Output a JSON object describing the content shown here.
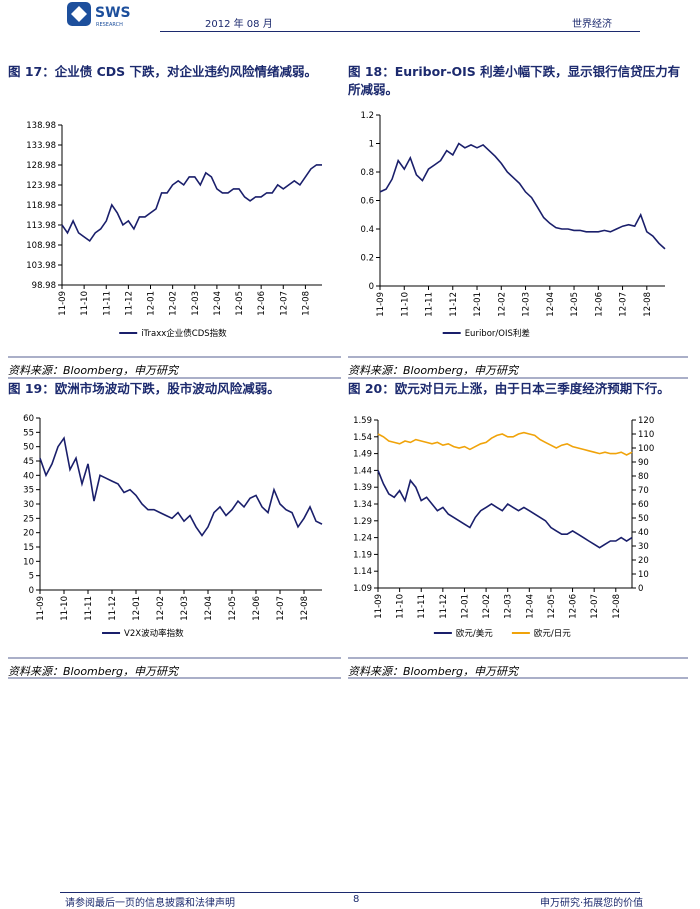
{
  "header": {
    "logo": "SWS",
    "logo_sub": "RESEARCH",
    "date": "2012 年 08 月",
    "section": "世界经济"
  },
  "chart_data": [
    {
      "type": "line",
      "title": "图 17：企业债 CDS 下跌，对企业违约风险情绪减弱。",
      "source": "资料来源：Bloomberg，申万研究",
      "categories": [
        "11-09",
        null,
        null,
        null,
        "11-10",
        null,
        null,
        null,
        "11-11",
        null,
        null,
        null,
        "11-12",
        null,
        null,
        null,
        "12-01",
        null,
        null,
        null,
        "12-02",
        null,
        null,
        null,
        "12-03",
        null,
        null,
        null,
        "12-04",
        null,
        null,
        null,
        "12-05",
        null,
        null,
        null,
        "12-06",
        null,
        null,
        null,
        "12-07",
        null,
        null,
        null,
        "12-08",
        null,
        null,
        null
      ],
      "series": [
        {
          "name": "iTraxx企业债CDS指数",
          "color": "#1a1f6b",
          "values": [
            114,
            112,
            115,
            112,
            111,
            110,
            112,
            113,
            115,
            119,
            117,
            114,
            115,
            113,
            116,
            116,
            117,
            118,
            122,
            122,
            124,
            125,
            124,
            126,
            126,
            124,
            127,
            126,
            123,
            122,
            122,
            123,
            123,
            121,
            120,
            121,
            121,
            122,
            122,
            124,
            123,
            124,
            125,
            124,
            126,
            128,
            129,
            129
          ]
        }
      ],
      "ylim": [
        98.98,
        138.98
      ],
      "yticks": [
        98.98,
        103.98,
        108.98,
        113.98,
        118.98,
        123.98,
        128.98,
        133.98,
        138.98
      ],
      "legend": "bottom"
    },
    {
      "type": "line",
      "title": "图 18：Euribor-OIS 利差小幅下跌，显示银行信贷压力有所减弱。",
      "source": "资料来源：Bloomberg，申万研究",
      "categories": [
        "11-09",
        null,
        null,
        null,
        "11-10",
        null,
        null,
        null,
        "11-11",
        null,
        null,
        null,
        "11-12",
        null,
        null,
        null,
        "12-01",
        null,
        null,
        null,
        "12-02",
        null,
        null,
        null,
        "12-03",
        null,
        null,
        null,
        "12-04",
        null,
        null,
        null,
        "12-05",
        null,
        null,
        null,
        "12-06",
        null,
        null,
        null,
        "12-07",
        null,
        null,
        null,
        "12-08",
        null,
        null,
        null
      ],
      "series": [
        {
          "name": "Euribor/OIS利差",
          "color": "#1a1f6b",
          "values": [
            0.66,
            0.68,
            0.75,
            0.88,
            0.82,
            0.9,
            0.78,
            0.74,
            0.82,
            0.85,
            0.88,
            0.95,
            0.92,
            1.0,
            0.97,
            0.99,
            0.97,
            0.99,
            0.95,
            0.91,
            0.86,
            0.8,
            0.76,
            0.72,
            0.66,
            0.62,
            0.55,
            0.48,
            0.44,
            0.41,
            0.4,
            0.4,
            0.39,
            0.39,
            0.38,
            0.38,
            0.38,
            0.39,
            0.38,
            0.4,
            0.42,
            0.43,
            0.42,
            0.5,
            0.38,
            0.35,
            0.3,
            0.26
          ]
        }
      ],
      "ylim": [
        0,
        1.2
      ],
      "yticks": [
        0,
        0.2,
        0.4,
        0.6,
        0.8,
        1,
        1.2
      ],
      "legend": "bottom"
    },
    {
      "type": "line",
      "title": "图 19：欧洲市场波动下跌，股市波动风险减弱。",
      "source": "资料来源：Bloomberg，申万研究",
      "categories": [
        "11-09",
        null,
        null,
        null,
        "11-10",
        null,
        null,
        null,
        "11-11",
        null,
        null,
        null,
        "11-12",
        null,
        null,
        null,
        "12-01",
        null,
        null,
        null,
        "12-02",
        null,
        null,
        null,
        "12-03",
        null,
        null,
        null,
        "12-04",
        null,
        null,
        null,
        "12-05",
        null,
        null,
        null,
        "12-06",
        null,
        null,
        null,
        "12-07",
        null,
        null,
        null,
        "12-08",
        null,
        null,
        null
      ],
      "series": [
        {
          "name": "V2X波动率指数",
          "color": "#1a1f6b",
          "values": [
            46,
            40,
            44,
            50,
            53,
            42,
            46,
            37,
            44,
            31,
            40,
            39,
            38,
            37,
            34,
            35,
            33,
            30,
            28,
            28,
            27,
            26,
            25,
            27,
            24,
            26,
            22,
            19,
            22,
            27,
            29,
            26,
            28,
            31,
            29,
            32,
            33,
            29,
            27,
            35,
            30,
            28,
            27,
            22,
            25,
            29,
            24,
            23
          ]
        }
      ],
      "ylim": [
        0,
        60
      ],
      "yticks": [
        0,
        5,
        10,
        15,
        20,
        25,
        30,
        35,
        40,
        45,
        50,
        55,
        60
      ],
      "legend": "bottom"
    },
    {
      "type": "line",
      "title": "图 20：欧元对日元上涨，由于日本三季度经济预期下行。",
      "source": "资料来源：Bloomberg，申万研究",
      "categories": [
        "11-09",
        null,
        null,
        null,
        "11-10",
        null,
        null,
        null,
        "11-11",
        null,
        null,
        null,
        "11-12",
        null,
        null,
        null,
        "12-01",
        null,
        null,
        null,
        "12-02",
        null,
        null,
        null,
        "12-03",
        null,
        null,
        null,
        "12-04",
        null,
        null,
        null,
        "12-05",
        null,
        null,
        null,
        "12-06",
        null,
        null,
        null,
        "12-07",
        null,
        null,
        null,
        "12-08",
        null,
        null,
        null
      ],
      "series": [
        {
          "name": "欧元/美元",
          "color": "#1a1f6b",
          "values": [
            1.44,
            1.4,
            1.37,
            1.36,
            1.38,
            1.35,
            1.41,
            1.39,
            1.35,
            1.36,
            1.34,
            1.32,
            1.33,
            1.31,
            1.3,
            1.29,
            1.28,
            1.27,
            1.3,
            1.32,
            1.33,
            1.34,
            1.33,
            1.32,
            1.34,
            1.33,
            1.32,
            1.33,
            1.32,
            1.31,
            1.3,
            1.29,
            1.27,
            1.26,
            1.25,
            1.25,
            1.26,
            1.25,
            1.24,
            1.23,
            1.22,
            1.21,
            1.22,
            1.23,
            1.23,
            1.24,
            1.23,
            1.24
          ]
        },
        {
          "name": "欧元/日元",
          "color": "#f0a30a",
          "axis": "y2",
          "values": [
            110,
            108,
            105,
            104,
            103,
            105,
            104,
            106,
            105,
            104,
            103,
            104,
            102,
            103,
            101,
            100,
            101,
            99,
            101,
            103,
            104,
            107,
            109,
            110,
            108,
            108,
            110,
            111,
            110,
            109,
            106,
            104,
            102,
            100,
            102,
            103,
            101,
            100,
            99,
            98,
            97,
            96,
            97,
            96,
            96,
            97,
            95,
            97
          ]
        }
      ],
      "ylim": [
        1.09,
        1.59
      ],
      "yticks": [
        1.09,
        1.14,
        1.19,
        1.24,
        1.29,
        1.34,
        1.39,
        1.44,
        1.49,
        1.54,
        1.59
      ],
      "y2lim": [
        0,
        120
      ],
      "y2ticks": [
        0,
        10,
        20,
        30,
        40,
        50,
        60,
        70,
        80,
        90,
        100,
        110,
        120
      ],
      "legend": "bottom"
    }
  ],
  "footer": {
    "disclaimer": "请参阅最后一页的信息披露和法律声明",
    "page": "8",
    "slogan": "申万研究·拓展您的价值"
  }
}
